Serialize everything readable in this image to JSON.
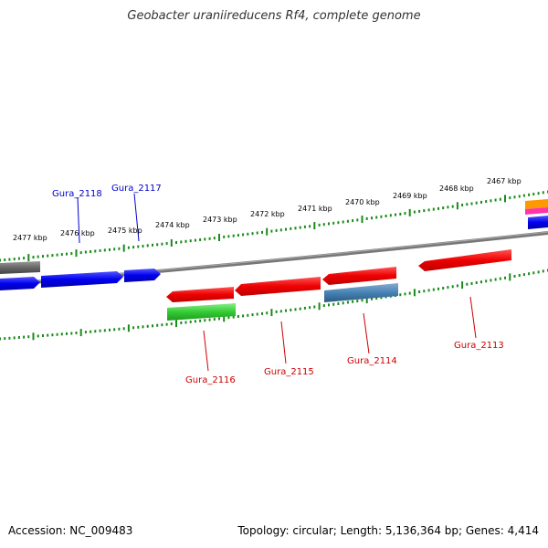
{
  "title": "Geobacter uraniireducens Rf4, complete genome",
  "footer": {
    "accession": "Accession: NC_009483",
    "topology": "Topology: circular; Length: 5,136,364 bp; Genes: 4,414"
  },
  "colors": {
    "backbone": "#808080",
    "tick_green": "#1a8a1a",
    "gene_red": "#ff0000",
    "gene_blue": "#0000ff",
    "gene_gray": "#666666",
    "gene_green": "#33cc33",
    "gene_steelblue": "#4682b4",
    "gene_orange": "#ff9900",
    "gene_magenta": "#ff33aa",
    "label_red": "#cc0000",
    "label_blue": "#0000cc"
  },
  "scale_labels": [
    "2477 kbp",
    "2476 kbp",
    "2475 kbp",
    "2474 kbp",
    "2473 kbp",
    "2472 kbp",
    "2471 kbp",
    "2470 kbp",
    "2469 kbp",
    "2468 kbp",
    "2467 kbp"
  ],
  "gene_labels": {
    "outer": [
      "Gura_2118",
      "Gura_2117"
    ],
    "inner": [
      "Gura_2116",
      "Gura_2115",
      "Gura_2114",
      "Gura_2113"
    ]
  }
}
